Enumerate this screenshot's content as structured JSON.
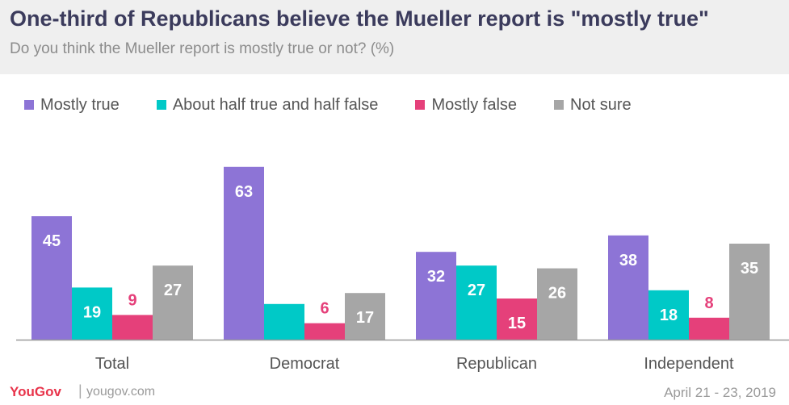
{
  "header": {
    "title": "One-third of Republicans believe the Mueller report is \"mostly true\"",
    "subtitle": "Do you think the Mueller report is mostly true or not? (%)"
  },
  "footer": {
    "brand": "YouGov",
    "separator": "|",
    "site": "yougov.com",
    "date": "April 21 - 23, 2019"
  },
  "chart_data": {
    "type": "bar",
    "title": "One-third of Republicans believe the Mueller report is \"mostly true\"",
    "subtitle": "Do you think the Mueller report is mostly true or not? (%)",
    "categories": [
      "Total",
      "Democrat",
      "Republican",
      "Independent"
    ],
    "series": [
      {
        "name": "Mostly true",
        "color": "#8d74d6",
        "label_color": "#ffffff",
        "values": [
          45,
          63,
          32,
          38
        ]
      },
      {
        "name": "About half true and half false",
        "color": "#00c9c7",
        "label_color": "#ffffff",
        "values": [
          19,
          13,
          27,
          18
        ]
      },
      {
        "name": "Mostly false",
        "color": "#e5407a",
        "label_color": "#e5407a",
        "label_inside_color": "#ffffff",
        "values": [
          9,
          6,
          15,
          8
        ]
      },
      {
        "name": "Not sure",
        "color": "#a6a6a6",
        "label_color": "#ffffff",
        "values": [
          27,
          17,
          26,
          35
        ]
      }
    ],
    "ylim": [
      0,
      63
    ],
    "grid": false,
    "legend": "top",
    "xlabel": "",
    "ylabel": ""
  }
}
